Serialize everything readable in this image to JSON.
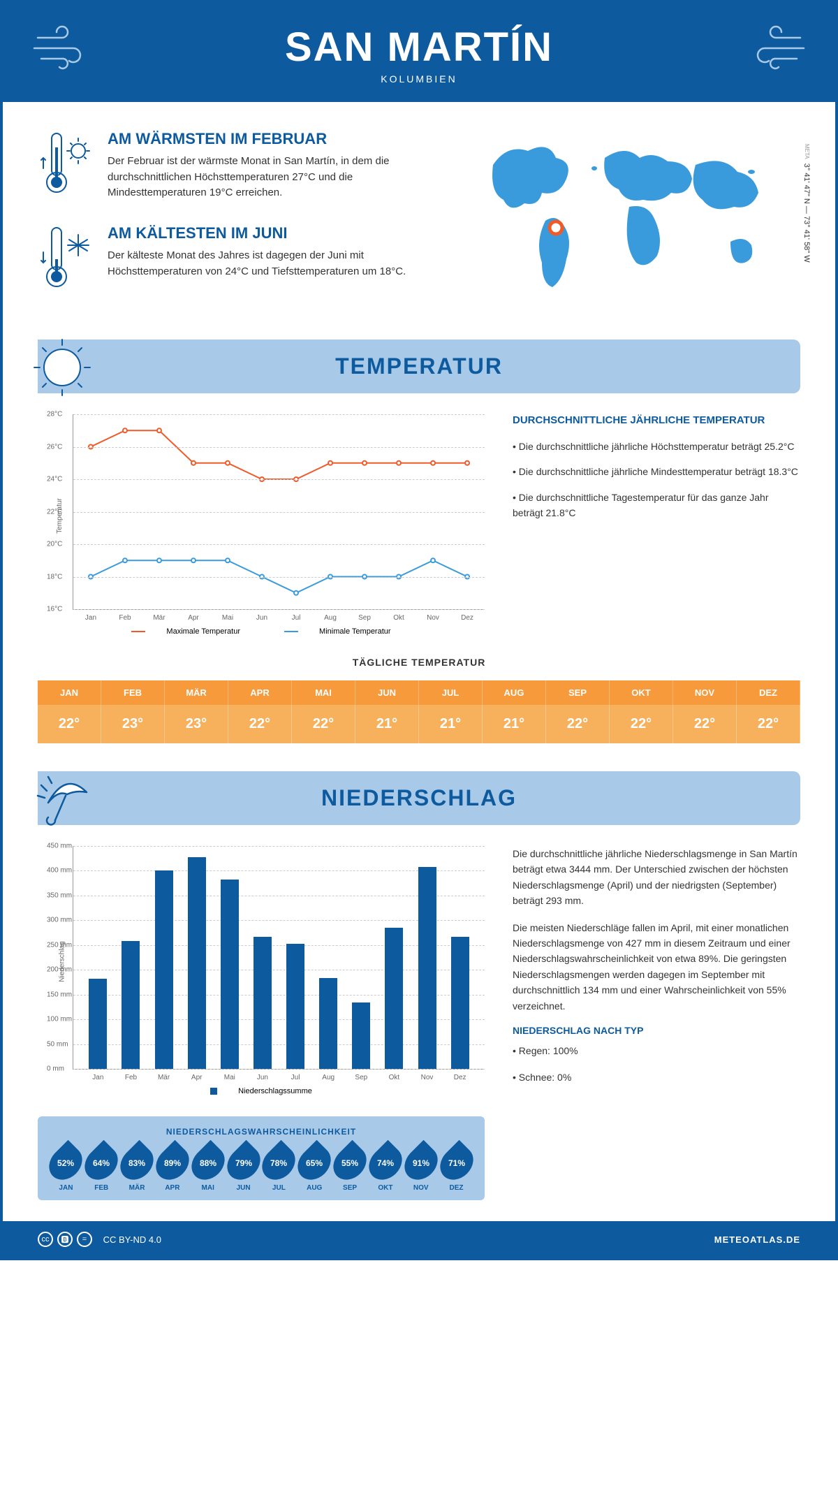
{
  "header": {
    "city": "SAN MARTÍN",
    "country": "KOLUMBIEN"
  },
  "coords": "3° 41' 47\" N — 73° 41' 58\" W",
  "coords_meta": "META",
  "facts": {
    "warm": {
      "title": "AM WÄRMSTEN IM FEBRUAR",
      "text": "Der Februar ist der wärmste Monat in San Martín, in dem die durchschnittlichen Höchsttemperaturen 27°C und die Mindesttemperaturen 19°C erreichen."
    },
    "cold": {
      "title": "AM KÄLTESTEN IM JUNI",
      "text": "Der kälteste Monat des Jahres ist dagegen der Juni mit Höchsttemperaturen von 24°C und Tiefsttemperaturen um 18°C."
    }
  },
  "sections": {
    "temperature": "TEMPERATUR",
    "precipitation": "NIEDERSCHLAG"
  },
  "temp_chart": {
    "type": "line",
    "ylabel": "Temperatur",
    "ylim": [
      16,
      28
    ],
    "ytick_step": 2,
    "y_unit": "°C",
    "months": [
      "Jan",
      "Feb",
      "Mär",
      "Apr",
      "Mai",
      "Jun",
      "Jul",
      "Aug",
      "Sep",
      "Okt",
      "Nov",
      "Dez"
    ],
    "series": {
      "max": {
        "label": "Maximale Temperatur",
        "color": "#f05a28",
        "values": [
          26,
          27,
          27,
          25,
          25,
          24,
          24,
          25,
          25,
          25,
          25,
          25
        ]
      },
      "min": {
        "label": "Minimale Temperatur",
        "color": "#3a9bdc",
        "values": [
          18,
          19,
          19,
          19,
          19,
          18,
          17,
          18,
          18,
          18,
          19,
          18
        ]
      }
    },
    "grid_color": "#cccccc",
    "background_color": "#ffffff"
  },
  "temp_text": {
    "heading": "DURCHSCHNITTLICHE JÄHRLICHE TEMPERATUR",
    "bullets": [
      "• Die durchschnittliche jährliche Höchsttemperatur beträgt 25.2°C",
      "• Die durchschnittliche jährliche Mindesttemperatur beträgt 18.3°C",
      "• Die durchschnittliche Tagestemperatur für das ganze Jahr beträgt 21.8°C"
    ]
  },
  "daily_temp": {
    "heading": "TÄGLICHE TEMPERATUR",
    "months": [
      "JAN",
      "FEB",
      "MÄR",
      "APR",
      "MAI",
      "JUN",
      "JUL",
      "AUG",
      "SEP",
      "OKT",
      "NOV",
      "DEZ"
    ],
    "values": [
      "22°",
      "23°",
      "23°",
      "22°",
      "22°",
      "21°",
      "21°",
      "21°",
      "22°",
      "22°",
      "22°",
      "22°"
    ],
    "head_color": "#f79a3c",
    "val_color": "#f7b15c"
  },
  "precip_chart": {
    "type": "bar",
    "ylabel": "Niederschlag",
    "ylim": [
      0,
      450
    ],
    "ytick_step": 50,
    "y_unit": " mm",
    "months": [
      "Jan",
      "Feb",
      "Mär",
      "Apr",
      "Mai",
      "Jun",
      "Jul",
      "Aug",
      "Sep",
      "Okt",
      "Nov",
      "Dez"
    ],
    "values": [
      182,
      258,
      400,
      427,
      382,
      267,
      252,
      183,
      134,
      285,
      408,
      266
    ],
    "bar_color": "#0d5a9e",
    "legend": "Niederschlagssumme"
  },
  "precip_text": {
    "p1": "Die durchschnittliche jährliche Niederschlagsmenge in San Martín beträgt etwa 3444 mm. Der Unterschied zwischen der höchsten Niederschlagsmenge (April) und der niedrigsten (September) beträgt 293 mm.",
    "p2": "Die meisten Niederschläge fallen im April, mit einer monatlichen Niederschlagsmenge von 427 mm in diesem Zeitraum und einer Niederschlagswahrscheinlichkeit von etwa 89%. Die geringsten Niederschlagsmengen werden dagegen im September mit durchschnittlich 134 mm und einer Wahrscheinlichkeit von 55% verzeichnet.",
    "type_heading": "NIEDERSCHLAG NACH TYP",
    "type_bullets": [
      "• Regen: 100%",
      "• Schnee: 0%"
    ]
  },
  "prob": {
    "title": "NIEDERSCHLAGSWAHRSCHEINLICHKEIT",
    "months": [
      "JAN",
      "FEB",
      "MÄR",
      "APR",
      "MAI",
      "JUN",
      "JUL",
      "AUG",
      "SEP",
      "OKT",
      "NOV",
      "DEZ"
    ],
    "values": [
      "52%",
      "64%",
      "83%",
      "89%",
      "88%",
      "79%",
      "78%",
      "65%",
      "55%",
      "74%",
      "91%",
      "71%"
    ],
    "drop_color": "#0d5a9e"
  },
  "footer": {
    "license": "CC BY-ND 4.0",
    "site": "METEOATLAS.DE"
  },
  "colors": {
    "primary": "#0d5a9e",
    "light_blue": "#a8cae8",
    "orange": "#f79a3c"
  }
}
